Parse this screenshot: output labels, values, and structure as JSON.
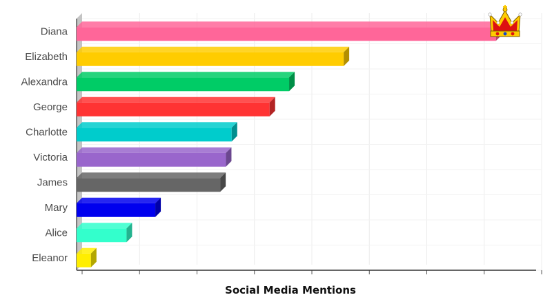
{
  "chart_data": {
    "type": "bar",
    "orientation": "horizontal",
    "style": "3d",
    "title": "",
    "xlabel": "Social Media Mentions",
    "ylabel": "",
    "categories": [
      "Diana",
      "Elizabeth",
      "Alexandra",
      "George",
      "Charlotte",
      "Victoria",
      "James",
      "Mary",
      "Alice",
      "Eleanor"
    ],
    "values": [
      730,
      465,
      370,
      336,
      270,
      260,
      250,
      137,
      87,
      25
    ],
    "colors": [
      "#ff6699",
      "#ffcc00",
      "#00cc66",
      "#ff3333",
      "#00cccc",
      "#9966cc",
      "#666666",
      "#0000ee",
      "#33ffcc",
      "#ffee00"
    ],
    "xlim": [
      0,
      800
    ],
    "xticks": [
      0,
      100,
      200,
      300,
      400,
      500,
      600,
      700,
      800
    ],
    "tick_labels_shown": false,
    "grid": true,
    "legend": "none",
    "decoration": "crown-icon"
  }
}
